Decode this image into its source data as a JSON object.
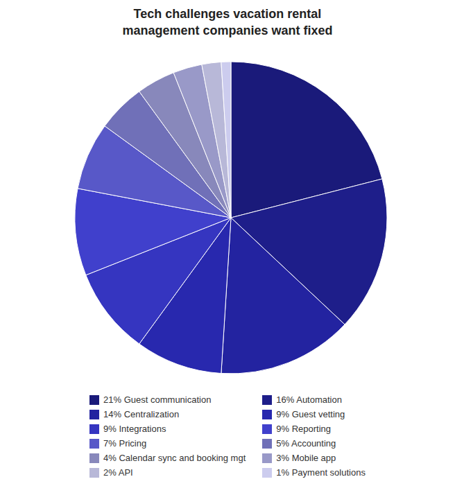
{
  "chart_data": {
    "type": "pie",
    "title": "Tech challenges vacation rental\nmanagement companies want fixed",
    "categories": [
      "21% Guest communication",
      "16% Automation",
      "14% Centralization",
      "9% Guest vetting",
      "9% Integrations",
      "9% Reporting",
      "7% Pricing",
      "5% Accounting",
      "4% Calendar sync and booking mgt",
      "3% Mobile app",
      "2% API",
      "1% Payment solutions"
    ],
    "values": [
      21,
      16,
      14,
      9,
      9,
      9,
      7,
      5,
      4,
      3,
      2,
      1
    ],
    "colors": [
      "#1a1a7a",
      "#1e1e8a",
      "#2323a0",
      "#2828ae",
      "#3535c0",
      "#4040cc",
      "#5858c8",
      "#7070b8",
      "#8888bb",
      "#9999c8",
      "#b8b8d8",
      "#ccccee"
    ],
    "legend": "bottom"
  }
}
